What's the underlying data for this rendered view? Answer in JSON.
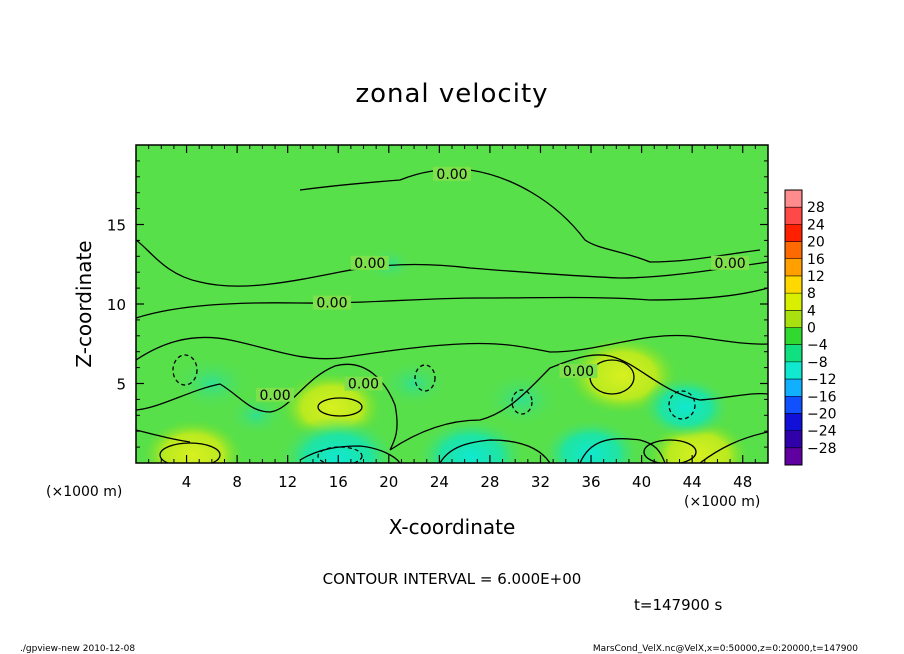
{
  "footer": {
    "program": "./gpview-new  2010-12-08",
    "source": "MarsCond_VelX.nc@VelX,x=0:50000,z=0:20000,t=147900"
  },
  "chart_data": {
    "type": "heatmap",
    "title": "zonal velocity",
    "xlabel": "X-coordinate",
    "ylabel": "Z-coordinate",
    "x_unit": "(×1000 m)",
    "y_unit": "(×1000 m)",
    "xlim": [
      0,
      50
    ],
    "ylim": [
      0,
      20
    ],
    "x_ticks": [
      4,
      8,
      12,
      16,
      20,
      24,
      28,
      32,
      36,
      40,
      44,
      48
    ],
    "y_ticks": [
      5,
      10,
      15
    ],
    "contour_interval_text": "CONTOUR INTERVAL = 6.000E+00",
    "time_text": "t=147900 s",
    "contour_labels": [
      {
        "text": "0.00",
        "x": 25.0,
        "z": 18.0
      },
      {
        "text": "0.00",
        "x": 18.5,
        "z": 12.4
      },
      {
        "text": "0.00",
        "x": 15.5,
        "z": 9.9
      },
      {
        "text": "0.00",
        "x": 47.0,
        "z": 12.4
      },
      {
        "text": "0.00",
        "x": 11.0,
        "z": 4.1
      },
      {
        "text": "0.00",
        "x": 18.0,
        "z": 4.8
      },
      {
        "text": "0.00",
        "x": 35.0,
        "z": 5.6
      }
    ],
    "anomalies": [
      {
        "x": 4.5,
        "z": 0.5,
        "value": 6
      },
      {
        "x": 15.5,
        "z": 3.5,
        "value": 6
      },
      {
        "x": 38.5,
        "z": 5.5,
        "value": 7
      },
      {
        "x": 44.5,
        "z": 0.5,
        "value": 6
      },
      {
        "x": 16.0,
        "z": 0.3,
        "value": -8
      },
      {
        "x": 26.5,
        "z": 0.4,
        "value": -7
      },
      {
        "x": 36.0,
        "z": 0.6,
        "value": -6
      },
      {
        "x": 6.0,
        "z": 5.0,
        "value": -4
      },
      {
        "x": 22.0,
        "z": 5.0,
        "value": -3
      },
      {
        "x": 30.5,
        "z": 4.0,
        "value": -4
      },
      {
        "x": 43.5,
        "z": 3.5,
        "value": -5
      },
      {
        "x": 9.5,
        "z": 3.0,
        "value": -2
      },
      {
        "x": 20.0,
        "z": 12.5,
        "value": -1
      }
    ],
    "colorbar": {
      "levels": [
        28,
        24,
        20,
        16,
        12,
        8,
        4,
        0,
        -4,
        -8,
        -12,
        -16,
        -20,
        -24,
        -28
      ],
      "colors": [
        "#ff8c8c",
        "#ff4848",
        "#ff2000",
        "#ff6a00",
        "#ffa000",
        "#ffd800",
        "#d8f000",
        "#a8e010",
        "#30d830",
        "#10e080",
        "#10e8d0",
        "#10b0ff",
        "#1050ff",
        "#1010d8",
        "#3000a8",
        "#6000a0"
      ]
    }
  }
}
